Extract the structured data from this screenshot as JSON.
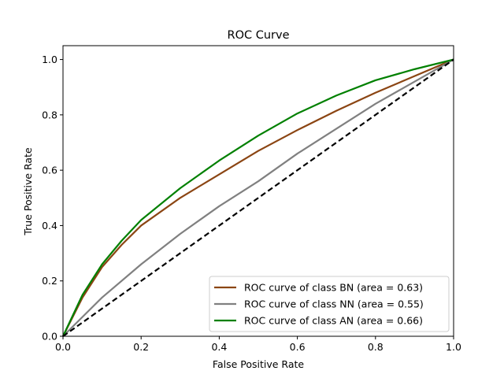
{
  "chart_data": {
    "type": "line",
    "title": "ROC Curve",
    "xlabel": "False Positive Rate",
    "ylabel": "True Positive Rate",
    "xlim": [
      0.0,
      1.0
    ],
    "ylim": [
      0.0,
      1.05
    ],
    "xticks": [
      "0.0",
      "0.2",
      "0.4",
      "0.6",
      "0.8",
      "1.0"
    ],
    "yticks": [
      "0.0",
      "0.2",
      "0.4",
      "0.6",
      "0.8",
      "1.0"
    ],
    "grid": false,
    "legend_position": "lower-right",
    "series": [
      {
        "name": "ROC curve of class BN (area = 0.63)",
        "color": "#8B4513",
        "x": [
          0.0,
          0.05,
          0.1,
          0.15,
          0.2,
          0.3,
          0.4,
          0.5,
          0.6,
          0.7,
          0.8,
          0.9,
          1.0
        ],
        "y": [
          0.0,
          0.14,
          0.25,
          0.33,
          0.4,
          0.5,
          0.585,
          0.67,
          0.745,
          0.815,
          0.88,
          0.94,
          1.0
        ]
      },
      {
        "name": "ROC curve of class NN (area = 0.55)",
        "color": "#808080",
        "x": [
          0.0,
          0.1,
          0.2,
          0.3,
          0.4,
          0.5,
          0.6,
          0.7,
          0.8,
          0.9,
          1.0
        ],
        "y": [
          0.0,
          0.14,
          0.26,
          0.37,
          0.47,
          0.56,
          0.66,
          0.75,
          0.84,
          0.92,
          1.0
        ]
      },
      {
        "name": "ROC curve of class AN (area = 0.66)",
        "color": "#008000",
        "x": [
          0.0,
          0.05,
          0.1,
          0.15,
          0.2,
          0.3,
          0.4,
          0.5,
          0.6,
          0.7,
          0.8,
          0.9,
          1.0
        ],
        "y": [
          0.0,
          0.15,
          0.26,
          0.345,
          0.42,
          0.535,
          0.635,
          0.725,
          0.805,
          0.87,
          0.925,
          0.965,
          1.0
        ]
      }
    ],
    "reference_line": {
      "x": [
        0.0,
        1.0
      ],
      "y": [
        0.0,
        1.0
      ],
      "color": "#000000",
      "style": "dashed"
    }
  }
}
